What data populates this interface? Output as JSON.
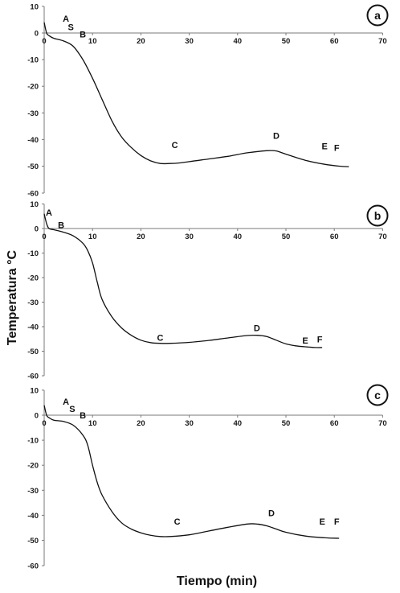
{
  "figure": {
    "xlabel": "Tiempo (min)",
    "ylabel": "Temperatura °C"
  },
  "chart_data": [
    {
      "type": "line",
      "panel_label": "a",
      "xlim": [
        0,
        70
      ],
      "ylim": [
        -60,
        10
      ],
      "xticks": [
        0,
        10,
        20,
        30,
        40,
        50,
        60,
        70
      ],
      "yticks": [
        10,
        0,
        -10,
        -20,
        -30,
        -40,
        -50,
        -60
      ],
      "grid": false,
      "series": [
        {
          "x": [
            0,
            0.5,
            1,
            2,
            4,
            6,
            8,
            10,
            12,
            14,
            16,
            18,
            20,
            22,
            24,
            26,
            28,
            30,
            34,
            38,
            42,
            46,
            48,
            50,
            54,
            58,
            61,
            63
          ],
          "y": [
            4,
            0,
            -1,
            -2,
            -3,
            -5,
            -10,
            -17,
            -25,
            -33,
            -39,
            -43,
            -46,
            -48,
            -49,
            -49,
            -48.8,
            -48.3,
            -47.3,
            -46.3,
            -45,
            -44.2,
            -44.3,
            -45.5,
            -47.8,
            -49.3,
            -50,
            -50.2
          ]
        }
      ],
      "annotations": [
        {
          "text": "A",
          "x": 4.5,
          "y": 5.5
        },
        {
          "text": "S",
          "x": 5.5,
          "y": 2.2
        },
        {
          "text": "B",
          "x": 8,
          "y": -0.5
        },
        {
          "text": "C",
          "x": 27,
          "y": -42
        },
        {
          "text": "D",
          "x": 48,
          "y": -38.5
        },
        {
          "text": "E",
          "x": 58,
          "y": -42.5
        },
        {
          "text": "F",
          "x": 60.5,
          "y": -43
        }
      ]
    },
    {
      "type": "line",
      "panel_label": "b",
      "xlim": [
        0,
        70
      ],
      "ylim": [
        -60,
        10
      ],
      "xticks": [
        0,
        10,
        20,
        30,
        40,
        50,
        60,
        70
      ],
      "yticks": [
        10,
        0,
        -10,
        -20,
        -30,
        -40,
        -50,
        -60
      ],
      "grid": false,
      "series": [
        {
          "x": [
            0,
            0.5,
            1,
            2,
            4,
            6,
            8,
            9,
            10,
            11,
            12,
            14,
            16,
            18,
            20,
            22,
            24,
            26,
            30,
            34,
            38,
            42,
            44,
            46,
            48,
            50,
            52,
            54,
            56,
            57.5
          ],
          "y": [
            6,
            2,
            0,
            -0.5,
            -1.5,
            -3,
            -6,
            -9,
            -14,
            -22,
            -29,
            -36,
            -40.5,
            -43.5,
            -45.5,
            -46.5,
            -46.8,
            -46.8,
            -46.4,
            -45.6,
            -44.6,
            -43.6,
            -43.5,
            -44,
            -45.5,
            -47,
            -47.8,
            -48.2,
            -48.5,
            -48.5
          ]
        }
      ],
      "annotations": [
        {
          "text": "A",
          "x": 1,
          "y": 6.5
        },
        {
          "text": "B",
          "x": 3.5,
          "y": 1.5
        },
        {
          "text": "C",
          "x": 24,
          "y": -44.5
        },
        {
          "text": "D",
          "x": 44,
          "y": -40.5
        },
        {
          "text": "E",
          "x": 54,
          "y": -45.5
        },
        {
          "text": "F",
          "x": 57,
          "y": -45
        }
      ]
    },
    {
      "type": "line",
      "panel_label": "c",
      "xlim": [
        0,
        70
      ],
      "ylim": [
        -60,
        10
      ],
      "xticks": [
        0,
        10,
        20,
        30,
        40,
        50,
        60,
        70
      ],
      "yticks": [
        10,
        0,
        -10,
        -20,
        -30,
        -40,
        -50,
        -60
      ],
      "grid": false,
      "series": [
        {
          "x": [
            0,
            0.5,
            1,
            2,
            4,
            6,
            8,
            9,
            10,
            11,
            12,
            14,
            16,
            18,
            20,
            22,
            24,
            26,
            30,
            34,
            38,
            42,
            44,
            46,
            48,
            50,
            54,
            58,
            61
          ],
          "y": [
            4,
            0,
            -1,
            -2,
            -2.5,
            -4,
            -8,
            -12,
            -20,
            -27,
            -32,
            -38.5,
            -43,
            -45.5,
            -47,
            -48,
            -48.5,
            -48.5,
            -47.8,
            -46.3,
            -44.8,
            -43.5,
            -43.5,
            -44.2,
            -45.5,
            -46.8,
            -48.3,
            -49,
            -49.2
          ]
        }
      ],
      "annotations": [
        {
          "text": "A",
          "x": 4.5,
          "y": 5.5
        },
        {
          "text": "S",
          "x": 5.8,
          "y": 2.5
        },
        {
          "text": "B",
          "x": 8,
          "y": 0
        },
        {
          "text": "C",
          "x": 27.5,
          "y": -42.5
        },
        {
          "text": "D",
          "x": 47,
          "y": -39
        },
        {
          "text": "E",
          "x": 57.5,
          "y": -42.5
        },
        {
          "text": "F",
          "x": 60.5,
          "y": -42.5
        }
      ]
    }
  ]
}
